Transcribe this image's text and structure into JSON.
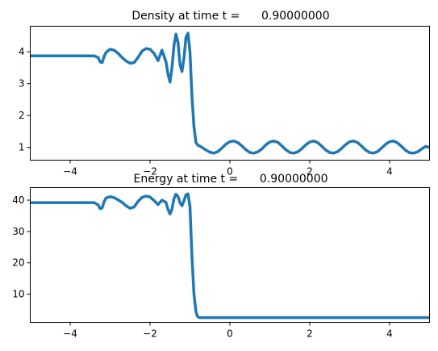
{
  "chart_data": [
    {
      "type": "line",
      "title": "Density at time t =      0.90000000",
      "xlabel": "",
      "ylabel": "",
      "xlim": [
        -5,
        5
      ],
      "ylim": [
        0.6,
        4.8
      ],
      "xticks": [
        -4,
        -2,
        0,
        2,
        4
      ],
      "xtick_labels": [
        "−4",
        "−2",
        "0",
        "2",
        "4"
      ],
      "yticks": [
        1,
        2,
        3,
        4
      ],
      "ytick_labels": [
        "1",
        "2",
        "3",
        "4"
      ],
      "grid": false,
      "color": "#1f77b4",
      "series": [
        {
          "x": [
            -5.0,
            -3.4,
            -3.3,
            -3.25,
            -3.2,
            -3.15,
            -3.1,
            -3.0,
            -2.9,
            -2.8,
            -2.7,
            -2.6,
            -2.5,
            -2.4,
            -2.3,
            -2.2,
            -2.1,
            -2.0,
            -1.9,
            -1.8,
            -1.7,
            -1.6,
            -1.55,
            -1.5,
            -1.45,
            -1.4,
            -1.35,
            -1.3,
            -1.25,
            -1.2,
            -1.15,
            -1.1,
            -1.05,
            -1.0,
            -0.95,
            -0.9,
            -0.85,
            -0.82,
            -0.8,
            -0.77,
            -0.75,
            -0.7,
            -0.6,
            -0.5,
            -0.4,
            -0.3,
            -0.2,
            -0.1,
            0.0,
            0.1,
            0.2,
            0.3,
            0.4,
            0.5,
            0.6,
            0.7,
            0.8,
            0.9,
            1.0,
            1.1,
            1.2,
            1.3,
            1.4,
            1.5,
            1.6,
            1.7,
            1.8,
            1.9,
            2.0,
            2.1,
            2.2,
            2.3,
            2.4,
            2.5,
            2.6,
            2.7,
            2.8,
            2.9,
            3.0,
            3.1,
            3.2,
            3.3,
            3.4,
            3.5,
            3.6,
            3.7,
            3.8,
            3.9,
            4.0,
            4.1,
            4.2,
            4.3,
            4.4,
            4.5,
            4.6,
            4.7,
            4.8,
            4.9,
            5.0
          ],
          "y": [
            3.87,
            3.87,
            3.82,
            3.68,
            3.66,
            3.85,
            3.98,
            4.08,
            4.05,
            3.95,
            3.82,
            3.71,
            3.64,
            3.66,
            3.82,
            4.02,
            4.1,
            4.08,
            3.95,
            3.72,
            4.05,
            3.68,
            3.3,
            3.05,
            3.5,
            4.2,
            4.55,
            4.3,
            3.6,
            3.38,
            3.8,
            4.45,
            4.58,
            4.0,
            2.6,
            1.65,
            1.15,
            1.1,
            1.07,
            1.05,
            1.04,
            1.0,
            0.92,
            0.85,
            0.82,
            0.87,
            0.98,
            1.1,
            1.18,
            1.2,
            1.15,
            1.05,
            0.93,
            0.84,
            0.82,
            0.86,
            0.95,
            1.08,
            1.17,
            1.2,
            1.16,
            1.05,
            0.93,
            0.84,
            0.82,
            0.86,
            0.96,
            1.08,
            1.17,
            1.2,
            1.15,
            1.04,
            0.92,
            0.84,
            0.82,
            0.87,
            0.97,
            1.09,
            1.18,
            1.2,
            1.15,
            1.04,
            0.92,
            0.84,
            0.82,
            0.87,
            0.98,
            1.1,
            1.18,
            1.2,
            1.14,
            1.03,
            0.91,
            0.83,
            0.82,
            0.86,
            0.95,
            1.03,
            1.0
          ]
        }
      ]
    },
    {
      "type": "line",
      "title": "Energy at time t =      0.90000000",
      "xlabel": "",
      "ylabel": "",
      "xlim": [
        -5,
        5
      ],
      "ylim": [
        1,
        44
      ],
      "xticks": [
        -4,
        -2,
        0,
        2,
        4
      ],
      "xtick_labels": [
        "−4",
        "−2",
        "0",
        "2",
        "4"
      ],
      "yticks": [
        10,
        20,
        30,
        40
      ],
      "ytick_labels": [
        "10",
        "20",
        "30",
        "40"
      ],
      "grid": false,
      "color": "#1f77b4",
      "series": [
        {
          "x": [
            -5.0,
            -3.4,
            -3.3,
            -3.25,
            -3.2,
            -3.15,
            -3.1,
            -3.0,
            -2.9,
            -2.8,
            -2.7,
            -2.6,
            -2.5,
            -2.4,
            -2.3,
            -2.2,
            -2.1,
            -2.0,
            -1.9,
            -1.8,
            -1.7,
            -1.6,
            -1.55,
            -1.5,
            -1.45,
            -1.4,
            -1.35,
            -1.3,
            -1.25,
            -1.2,
            -1.15,
            -1.1,
            -1.05,
            -1.0,
            -0.95,
            -0.9,
            -0.85,
            -0.82,
            -0.8,
            -0.78,
            -0.76,
            -0.7,
            0.0,
            1.0,
            2.0,
            3.0,
            4.0,
            5.0
          ],
          "y": [
            39.2,
            39.2,
            38.5,
            37.3,
            37.5,
            39.5,
            40.7,
            41.1,
            40.8,
            40.1,
            39.3,
            38.2,
            37.4,
            37.8,
            39.6,
            40.9,
            41.3,
            41.0,
            39.9,
            38.6,
            40.0,
            39.3,
            37.0,
            35.6,
            37.2,
            40.5,
            41.9,
            41.2,
            39.2,
            38.2,
            39.8,
            41.7,
            42.0,
            38.0,
            22.0,
            10.0,
            4.5,
            3.1,
            2.8,
            2.6,
            2.5,
            2.5,
            2.5,
            2.5,
            2.5,
            2.5,
            2.5,
            2.5
          ]
        }
      ]
    }
  ]
}
